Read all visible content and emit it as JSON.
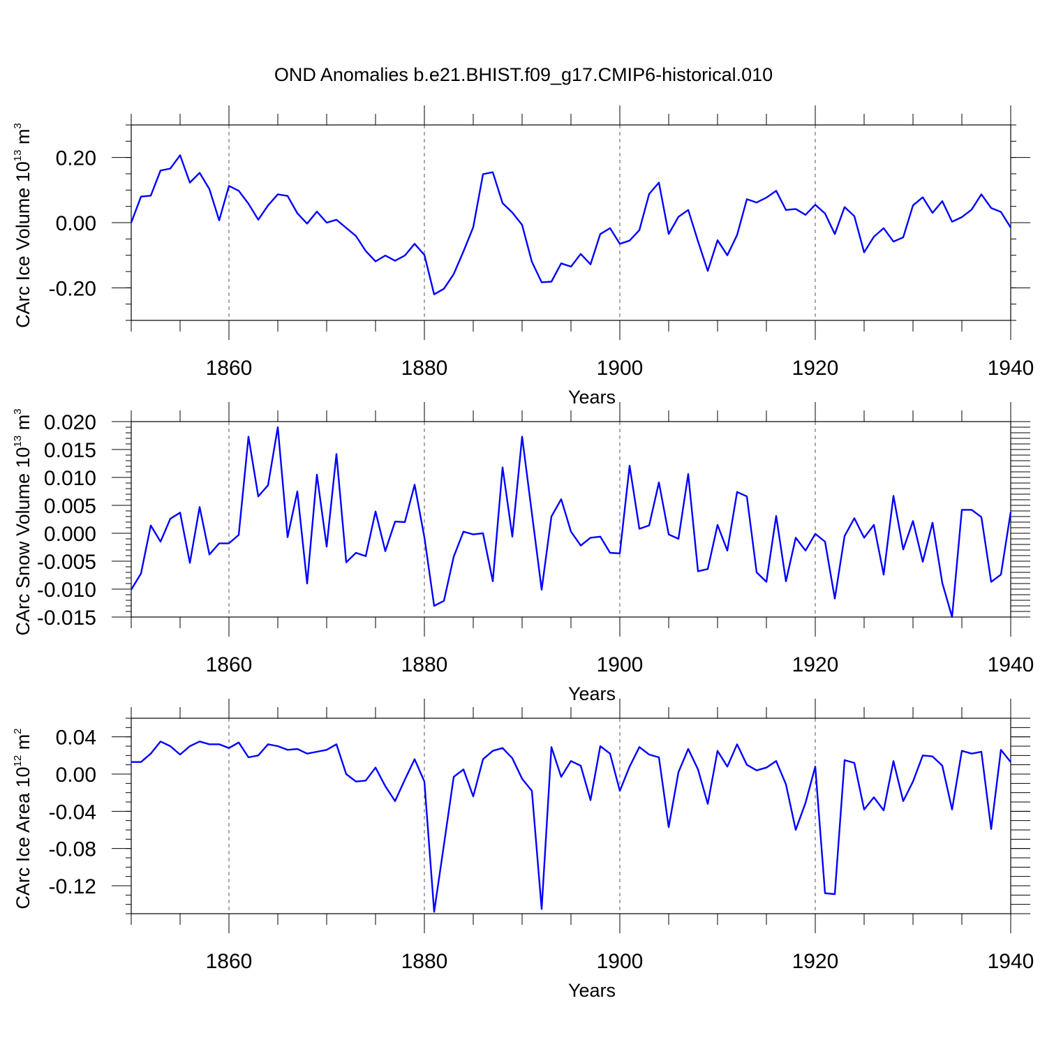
{
  "title": "OND Anomalies b.e21.BHIST.f09_g17.CMIP6-historical.010",
  "colors": {
    "line": "#0000ff",
    "axis": "#000000",
    "grid": "#555555"
  },
  "chart_data": [
    {
      "type": "line",
      "name": "ice-volume",
      "ylabel": {
        "text": "CArc Ice Volume 10",
        "sup": "13",
        "unit": " m",
        "unit_sup": "3"
      },
      "xlabel": "Years",
      "xlim": [
        1850,
        1940
      ],
      "ylim": [
        -0.3,
        0.3
      ],
      "xticks": [
        1860,
        1880,
        1900,
        1920,
        1940
      ],
      "yticks": [
        -0.2,
        0.0,
        0.2
      ],
      "ytick_labels": [
        "-0.20",
        "0.00",
        "0.20"
      ],
      "yminor_step": 0.05,
      "series": [
        {
          "name": "CArc Ice Volume",
          "color": "#0000ff",
          "x_start": 1850,
          "x_step": 1,
          "values": [
            0.0,
            0.08,
            0.083,
            0.16,
            0.166,
            0.207,
            0.123,
            0.153,
            0.103,
            0.007,
            0.113,
            0.098,
            0.058,
            0.009,
            0.053,
            0.087,
            0.082,
            0.029,
            -0.003,
            0.034,
            0.0,
            0.009,
            -0.016,
            -0.041,
            -0.087,
            -0.119,
            -0.101,
            -0.117,
            -0.101,
            -0.065,
            -0.099,
            -0.22,
            -0.203,
            -0.158,
            -0.088,
            -0.014,
            0.149,
            0.155,
            0.06,
            0.031,
            -0.007,
            -0.12,
            -0.183,
            -0.181,
            -0.125,
            -0.135,
            -0.096,
            -0.128,
            -0.035,
            -0.017,
            -0.065,
            -0.055,
            -0.023,
            0.088,
            0.123,
            -0.035,
            0.018,
            0.039,
            -0.057,
            -0.148,
            -0.054,
            -0.1,
            -0.038,
            0.072,
            0.062,
            0.077,
            0.098,
            0.039,
            0.042,
            0.024,
            0.055,
            0.028,
            -0.035,
            0.048,
            0.02,
            -0.091,
            -0.043,
            -0.017,
            -0.058,
            -0.045,
            0.053,
            0.078,
            0.03,
            0.066,
            0.003,
            0.017,
            0.04,
            0.087,
            0.045,
            0.033,
            -0.015
          ]
        }
      ]
    },
    {
      "type": "line",
      "name": "snow-volume",
      "ylabel": {
        "text": "CArc Snow Volume 10",
        "sup": "13",
        "unit": " m",
        "unit_sup": "3"
      },
      "xlabel": "Years",
      "xlim": [
        1850,
        1940
      ],
      "ylim": [
        -0.015,
        0.02
      ],
      "xticks": [
        1860,
        1880,
        1900,
        1920,
        1940
      ],
      "yticks": [
        -0.015,
        -0.01,
        -0.005,
        0.0,
        0.005,
        0.01,
        0.015,
        0.02
      ],
      "ytick_labels": [
        "-0.015",
        "-0.010",
        "-0.005",
        "0.000",
        "0.005",
        "0.010",
        "0.015",
        "0.020"
      ],
      "yminor_step": 0.001,
      "series": [
        {
          "name": "CArc Snow Volume",
          "color": "#0000ff",
          "x_start": 1850,
          "x_step": 1,
          "values": [
            -0.0101,
            -0.0072,
            0.0014,
            -0.0015,
            0.0026,
            0.0037,
            -0.0053,
            0.0047,
            -0.0038,
            -0.0018,
            -0.0018,
            -0.0003,
            0.0173,
            0.0066,
            0.0086,
            0.019,
            -0.0007,
            0.0075,
            -0.009,
            0.0105,
            -0.0024,
            0.0142,
            -0.0052,
            -0.0035,
            -0.0041,
            0.0039,
            -0.0032,
            0.0021,
            0.002,
            0.0087,
            -0.0007,
            -0.013,
            -0.0121,
            -0.0042,
            0.0003,
            -0.0002,
            0.0,
            -0.0086,
            0.0118,
            -0.0006,
            0.0173,
            0.0036,
            -0.0101,
            0.003,
            0.0061,
            0.0003,
            -0.0022,
            -0.0008,
            -0.0006,
            -0.0035,
            -0.0036,
            0.0121,
            0.0008,
            0.0014,
            0.0091,
            -0.0002,
            -0.001,
            0.0106,
            -0.0068,
            -0.0064,
            0.0015,
            -0.0031,
            0.0074,
            0.0066,
            -0.007,
            -0.0087,
            0.0031,
            -0.0086,
            -0.0008,
            -0.0031,
            -0.0001,
            -0.0015,
            -0.0117,
            -0.0005,
            0.0027,
            -0.0008,
            0.0015,
            -0.0074,
            0.0067,
            -0.0029,
            0.0022,
            -0.0051,
            0.0019,
            -0.0089,
            -0.015,
            0.0042,
            0.0042,
            0.0029,
            -0.0087,
            -0.0074,
            0.0038
          ]
        }
      ]
    },
    {
      "type": "line",
      "name": "ice-area",
      "ylabel": {
        "text": "CArc Ice Area 10",
        "sup": "12",
        "unit": " m",
        "unit_sup": "2"
      },
      "xlabel": "Years",
      "xlim": [
        1850,
        1940
      ],
      "ylim": [
        -0.15,
        0.06
      ],
      "xticks": [
        1860,
        1880,
        1900,
        1920,
        1940
      ],
      "yticks": [
        -0.12,
        -0.08,
        -0.04,
        0.0,
        0.04
      ],
      "ytick_labels": [
        "-0.12",
        "-0.08",
        "-0.04",
        "0.00",
        "0.04"
      ],
      "yminor_step": 0.01,
      "series": [
        {
          "name": "CArc Ice Area",
          "color": "#0000ff",
          "x_start": 1850,
          "x_step": 1,
          "values": [
            0.013,
            0.013,
            0.022,
            0.035,
            0.03,
            0.021,
            0.03,
            0.035,
            0.032,
            0.032,
            0.028,
            0.034,
            0.018,
            0.02,
            0.032,
            0.03,
            0.026,
            0.027,
            0.022,
            0.024,
            0.026,
            0.032,
            0.0,
            -0.008,
            -0.007,
            0.007,
            -0.013,
            -0.029,
            -0.006,
            0.016,
            -0.008,
            -0.148,
            -0.076,
            -0.003,
            0.005,
            -0.024,
            0.016,
            0.025,
            0.028,
            0.017,
            -0.005,
            -0.018,
            -0.145,
            0.029,
            -0.003,
            0.014,
            0.009,
            -0.028,
            0.03,
            0.022,
            -0.018,
            0.008,
            0.029,
            0.021,
            0.018,
            -0.057,
            0.002,
            0.027,
            0.005,
            -0.032,
            0.025,
            0.008,
            0.032,
            0.01,
            0.004,
            0.007,
            0.014,
            -0.011,
            -0.06,
            -0.031,
            0.008,
            -0.128,
            -0.129,
            0.015,
            0.012,
            -0.038,
            -0.025,
            -0.039,
            0.014,
            -0.029,
            -0.008,
            0.02,
            0.019,
            0.009,
            -0.038,
            0.025,
            0.022,
            0.024,
            -0.059,
            0.026,
            0.013
          ]
        }
      ]
    }
  ]
}
